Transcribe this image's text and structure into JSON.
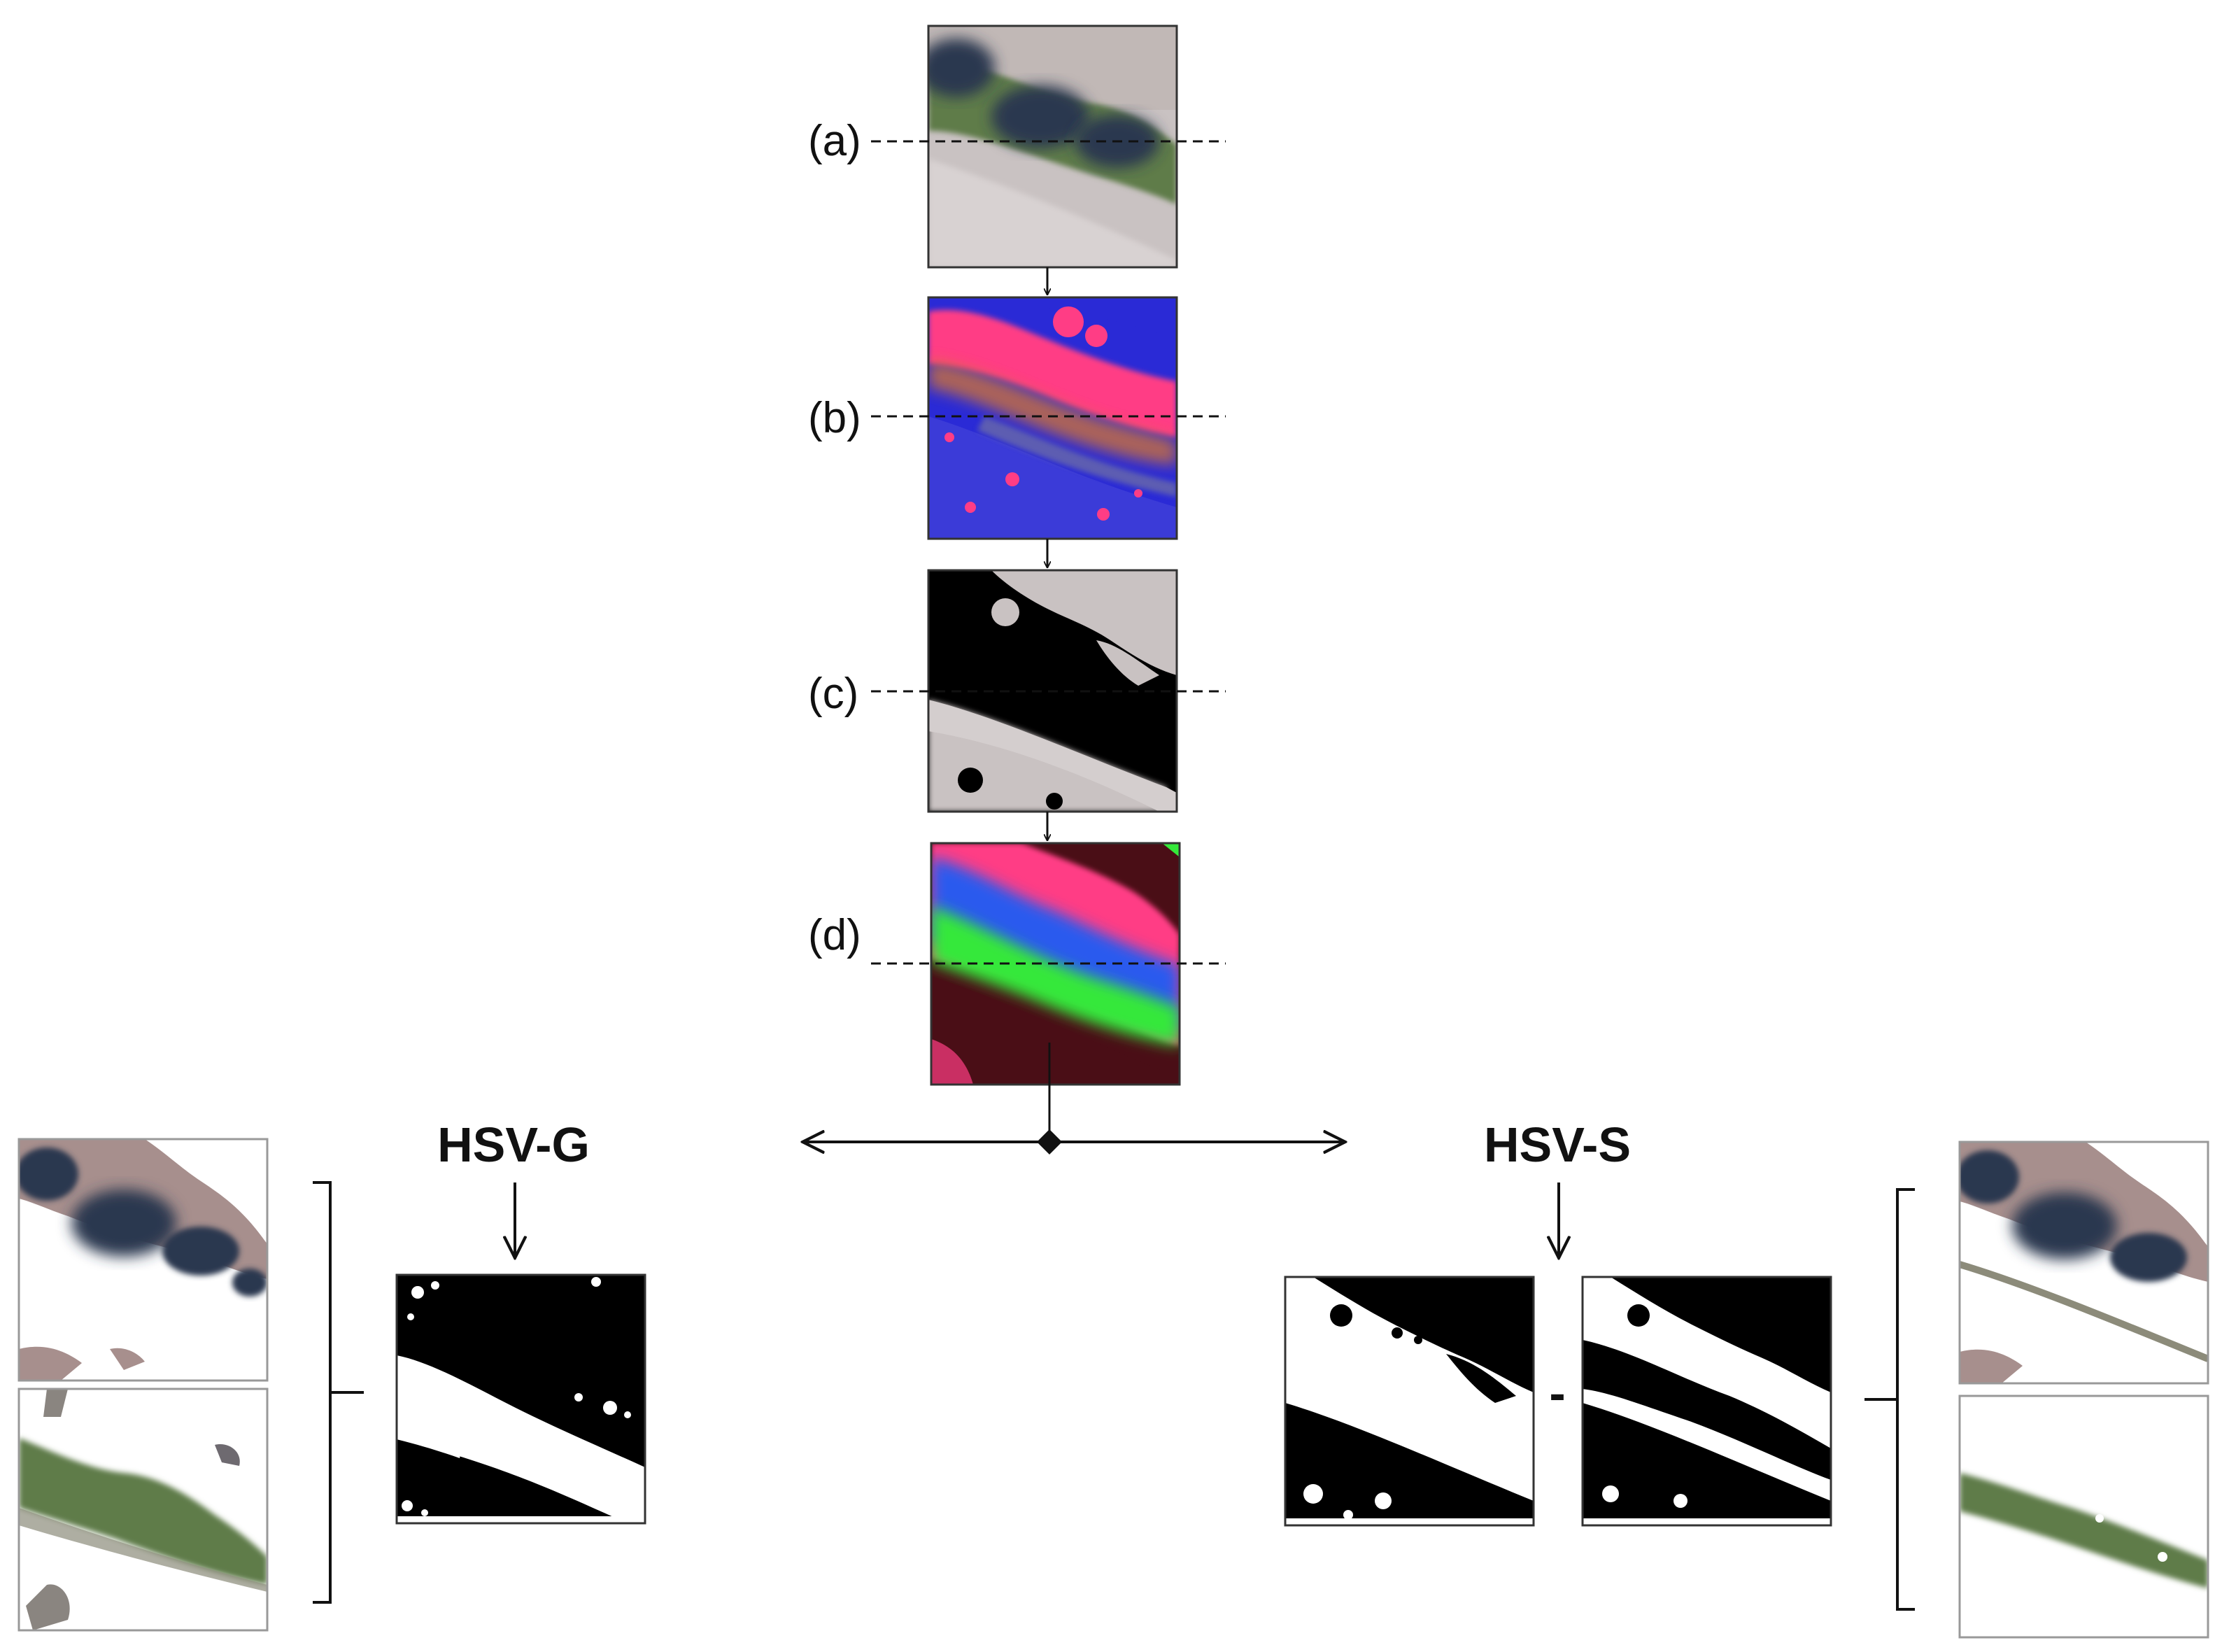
{
  "steps": [
    {
      "id": "a",
      "label": "(a)"
    },
    {
      "id": "b",
      "label": "(b)"
    },
    {
      "id": "c",
      "label": "(c)"
    },
    {
      "id": "d",
      "label": "(d)"
    }
  ],
  "branches": {
    "left": {
      "title": "HSV-G"
    },
    "right": {
      "title": "HSV-S",
      "operator": "-"
    }
  },
  "colors": {
    "line": "#111111",
    "road": "#c9c2c2",
    "vegetation": "#5f7b4a",
    "shadow": "#2c3850",
    "magenta": "#ff3d85",
    "blue": "#2a2ad6",
    "green": "#35e83a",
    "maroon": "#4a0e16",
    "mask_black": "#000000",
    "mask_white": "#ffffff"
  }
}
